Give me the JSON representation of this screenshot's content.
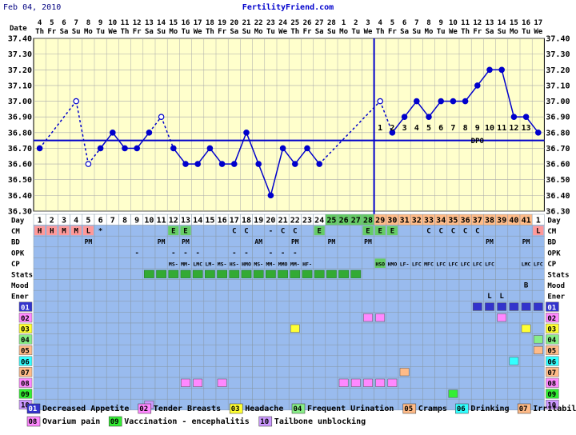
{
  "header": {
    "date": "Feb 04, 2010",
    "site": "FertilityFriend.com"
  },
  "row_labels": {
    "date": "Date",
    "day": "Day",
    "cm": "CM",
    "bd": "BD",
    "opk": "OPK",
    "cp": "CP",
    "stats": "Stats",
    "mood": "Mood",
    "ener": "Ener",
    "symptoms": [
      "01",
      "02",
      "03",
      "04",
      "05",
      "06",
      "07",
      "08",
      "09",
      "10"
    ]
  },
  "colors": {
    "chart_bg": "#ffffcc",
    "line": "#0000cc",
    "grid": "#aaaaaa",
    "table_bg": "#99bbee",
    "cd_white": "#ffffff",
    "cd_period": "#ff9999",
    "cd_green": "#66cc66",
    "cd_orange": "#ffbb88",
    "sym": {
      "01": "#3333cc",
      "02": "#ff88ff",
      "03": "#ffff33",
      "04": "#88ee88",
      "05": "#ffbb88",
      "06": "#33ffff",
      "07": "#ffbb88",
      "08": "#ff88ff",
      "09": "#33ee33",
      "10": "#cc99ff"
    }
  },
  "chart_data": {
    "type": "line",
    "ylim": [
      36.3,
      37.4
    ],
    "yticks": [
      "36.30",
      "36.40",
      "36.50",
      "36.60",
      "36.70",
      "36.80",
      "36.90",
      "37.00",
      "37.10",
      "37.20",
      "37.30",
      "37.40"
    ],
    "dates": [
      {
        "d": "4",
        "w": "Th"
      },
      {
        "d": "5",
        "w": "Fr"
      },
      {
        "d": "6",
        "w": "Sa"
      },
      {
        "d": "7",
        "w": "Su"
      },
      {
        "d": "8",
        "w": "Mo"
      },
      {
        "d": "9",
        "w": "Tu"
      },
      {
        "d": "10",
        "w": "We"
      },
      {
        "d": "11",
        "w": "Th"
      },
      {
        "d": "12",
        "w": "Fr"
      },
      {
        "d": "13",
        "w": "Sa"
      },
      {
        "d": "14",
        "w": "Su"
      },
      {
        "d": "15",
        "w": "Mo"
      },
      {
        "d": "16",
        "w": "Tu"
      },
      {
        "d": "17",
        "w": "We"
      },
      {
        "d": "18",
        "w": "Th"
      },
      {
        "d": "19",
        "w": "Fr"
      },
      {
        "d": "20",
        "w": "Sa"
      },
      {
        "d": "21",
        "w": "Su"
      },
      {
        "d": "22",
        "w": "Mo"
      },
      {
        "d": "23",
        "w": "Tu"
      },
      {
        "d": "24",
        "w": "We"
      },
      {
        "d": "25",
        "w": "Th"
      },
      {
        "d": "26",
        "w": "Fr"
      },
      {
        "d": "27",
        "w": "Sa"
      },
      {
        "d": "28",
        "w": "Su"
      },
      {
        "d": "1",
        "w": "Mo"
      },
      {
        "d": "2",
        "w": "Tu"
      },
      {
        "d": "3",
        "w": "We"
      },
      {
        "d": "4",
        "w": "Th"
      },
      {
        "d": "5",
        "w": "Fr"
      },
      {
        "d": "6",
        "w": "Sa"
      },
      {
        "d": "7",
        "w": "Su"
      },
      {
        "d": "8",
        "w": "Mo"
      },
      {
        "d": "9",
        "w": "Tu"
      },
      {
        "d": "10",
        "w": "We"
      },
      {
        "d": "11",
        "w": "Th"
      },
      {
        "d": "12",
        "w": "Fr"
      },
      {
        "d": "13",
        "w": "Sa"
      },
      {
        "d": "14",
        "w": "Su"
      },
      {
        "d": "15",
        "w": "Mo"
      },
      {
        "d": "16",
        "w": "Tu"
      },
      {
        "d": "17",
        "w": "We"
      }
    ],
    "temps": [
      36.7,
      null,
      null,
      37.0,
      36.6,
      36.7,
      36.8,
      36.7,
      36.7,
      36.8,
      36.9,
      36.7,
      36.6,
      36.6,
      36.7,
      36.6,
      36.6,
      36.8,
      36.6,
      36.4,
      36.7,
      36.6,
      36.7,
      36.6,
      null,
      null,
      null,
      null,
      37.0,
      36.8,
      36.9,
      37.0,
      36.9,
      37.0,
      37.0,
      37.0,
      37.1,
      37.2,
      37.2,
      36.9,
      36.9,
      36.8
    ],
    "discarded": [
      4,
      5,
      11,
      29
    ],
    "coverline": 36.75,
    "ovulation_day": 28,
    "dpo": [
      "1",
      "2",
      "3",
      "4",
      "5",
      "6",
      "7",
      "8",
      "9",
      "10",
      "11",
      "12",
      "13"
    ],
    "dpo_label": "DPO"
  },
  "cycle_days": [
    "1",
    "2",
    "3",
    "4",
    "5",
    "6",
    "7",
    "8",
    "9",
    "10",
    "11",
    "12",
    "13",
    "14",
    "15",
    "16",
    "17",
    "18",
    "19",
    "20",
    "21",
    "22",
    "23",
    "24",
    "25",
    "26",
    "27",
    "28",
    "29",
    "30",
    "31",
    "32",
    "33",
    "34",
    "35",
    "36",
    "37",
    "38",
    "39",
    "40",
    "41",
    "1"
  ],
  "cd_colors": [
    "white",
    "white",
    "white",
    "white",
    "white",
    "white",
    "white",
    "white",
    "white",
    "white",
    "white",
    "white",
    "white",
    "white",
    "white",
    "white",
    "white",
    "white",
    "white",
    "white",
    "white",
    "white",
    "white",
    "white",
    "green",
    "green",
    "green",
    "green",
    "orange",
    "orange",
    "orange",
    "orange",
    "orange",
    "orange",
    "orange",
    "orange",
    "orange",
    "orange",
    "orange",
    "orange",
    "orange",
    "white"
  ],
  "cm": [
    {
      "day": 1,
      "v": "H",
      "c": "#ff9999"
    },
    {
      "day": 2,
      "v": "H",
      "c": "#ff9999"
    },
    {
      "day": 3,
      "v": "M",
      "c": "#ff9999"
    },
    {
      "day": 4,
      "v": "M",
      "c": "#ff9999"
    },
    {
      "day": 5,
      "v": "L",
      "c": "#ff9999"
    },
    {
      "day": 6,
      "v": "*"
    },
    {
      "day": 12,
      "v": "E",
      "c": "#66cc66"
    },
    {
      "day": 13,
      "v": "E",
      "c": "#66cc66"
    },
    {
      "day": 17,
      "v": "C"
    },
    {
      "day": 18,
      "v": "C"
    },
    {
      "day": 20,
      "v": "-"
    },
    {
      "day": 21,
      "v": "C"
    },
    {
      "day": 22,
      "v": "C"
    },
    {
      "day": 24,
      "v": "E",
      "c": "#66cc66"
    },
    {
      "day": 28,
      "v": "E",
      "c": "#66cc66"
    },
    {
      "day": 29,
      "v": "E",
      "c": "#66cc66"
    },
    {
      "day": 30,
      "v": "E",
      "c": "#66cc66"
    },
    {
      "day": 33,
      "v": "C"
    },
    {
      "day": 34,
      "v": "C"
    },
    {
      "day": 35,
      "v": "C"
    },
    {
      "day": 36,
      "v": "C"
    },
    {
      "day": 37,
      "v": "C"
    },
    {
      "day": 42,
      "v": "L",
      "c": "#ff9999"
    }
  ],
  "bd": [
    {
      "day": 5,
      "v": "PM"
    },
    {
      "day": 11,
      "v": "PM"
    },
    {
      "day": 13,
      "v": "PM"
    },
    {
      "day": 19,
      "v": "AM"
    },
    {
      "day": 22,
      "v": "PM"
    },
    {
      "day": 25,
      "v": "PM"
    },
    {
      "day": 28,
      "v": "PM"
    },
    {
      "day": 38,
      "v": "PM"
    },
    {
      "day": 41,
      "v": "PM"
    }
  ],
  "opk": [
    {
      "day": 9,
      "v": "-"
    },
    {
      "day": 12,
      "v": "-"
    },
    {
      "day": 13,
      "v": "-"
    },
    {
      "day": 14,
      "v": "-"
    },
    {
      "day": 17,
      "v": "-"
    },
    {
      "day": 18,
      "v": "-"
    },
    {
      "day": 20,
      "v": "-"
    },
    {
      "day": 21,
      "v": "-"
    },
    {
      "day": 22,
      "v": "-"
    }
  ],
  "cp": [
    {
      "day": 12,
      "v": "MS-"
    },
    {
      "day": 13,
      "v": "MM-"
    },
    {
      "day": 14,
      "v": "LMC"
    },
    {
      "day": 15,
      "v": "LM-"
    },
    {
      "day": 16,
      "v": "MS-"
    },
    {
      "day": 17,
      "v": "HS-"
    },
    {
      "day": 18,
      "v": "HMO"
    },
    {
      "day": 19,
      "v": "MS-"
    },
    {
      "day": 20,
      "v": "MM-"
    },
    {
      "day": 21,
      "v": "MMO"
    },
    {
      "day": 22,
      "v": "MM-"
    },
    {
      "day": 23,
      "v": "HF-"
    },
    {
      "day": 29,
      "v": "HSO",
      "c": "#66cc66"
    },
    {
      "day": 30,
      "v": "HMO"
    },
    {
      "day": 31,
      "v": "LF-"
    },
    {
      "day": 32,
      "v": "LFC"
    },
    {
      "day": 33,
      "v": "MFC"
    },
    {
      "day": 34,
      "v": "LFC"
    },
    {
      "day": 35,
      "v": "LFC"
    },
    {
      "day": 36,
      "v": "LFC"
    },
    {
      "day": 37,
      "v": "LFC"
    },
    {
      "day": 38,
      "v": "LFC"
    },
    {
      "day": 41,
      "v": "LMC"
    },
    {
      "day": 42,
      "v": "LFC"
    }
  ],
  "stats_days": [
    10,
    11,
    12,
    13,
    14,
    15,
    16,
    17,
    18,
    19,
    20,
    21,
    22,
    23,
    24,
    25,
    26,
    27
  ],
  "mood": [
    {
      "day": 41,
      "v": "B"
    }
  ],
  "ener": [
    {
      "day": 38,
      "v": "L"
    },
    {
      "day": 39,
      "v": "L"
    }
  ],
  "symptom_cells": {
    "01": [
      37,
      38,
      39,
      40,
      41,
      42
    ],
    "02": [
      28,
      29,
      39
    ],
    "03": [
      22,
      41
    ],
    "04": [
      42
    ],
    "05": [
      42
    ],
    "06": [
      40
    ],
    "07": [
      31
    ],
    "08": [
      13,
      14,
      16,
      26,
      27,
      28,
      29,
      30
    ],
    "09": [
      35
    ],
    "10": [
      10
    ]
  },
  "legend": [
    {
      "code": "01",
      "label": "Decreased Appetite"
    },
    {
      "code": "02",
      "label": "Tender Breasts"
    },
    {
      "code": "03",
      "label": "Headache"
    },
    {
      "code": "04",
      "label": "Frequent Urination"
    },
    {
      "code": "05",
      "label": "Cramps"
    },
    {
      "code": "06",
      "label": "Drinking"
    },
    {
      "code": "07",
      "label": "Irritability"
    },
    {
      "code": "08",
      "label": "Ovarium pain"
    },
    {
      "code": "09",
      "label": "Vaccination - encephalitis"
    },
    {
      "code": "10",
      "label": "Tailbone unblocking"
    }
  ]
}
